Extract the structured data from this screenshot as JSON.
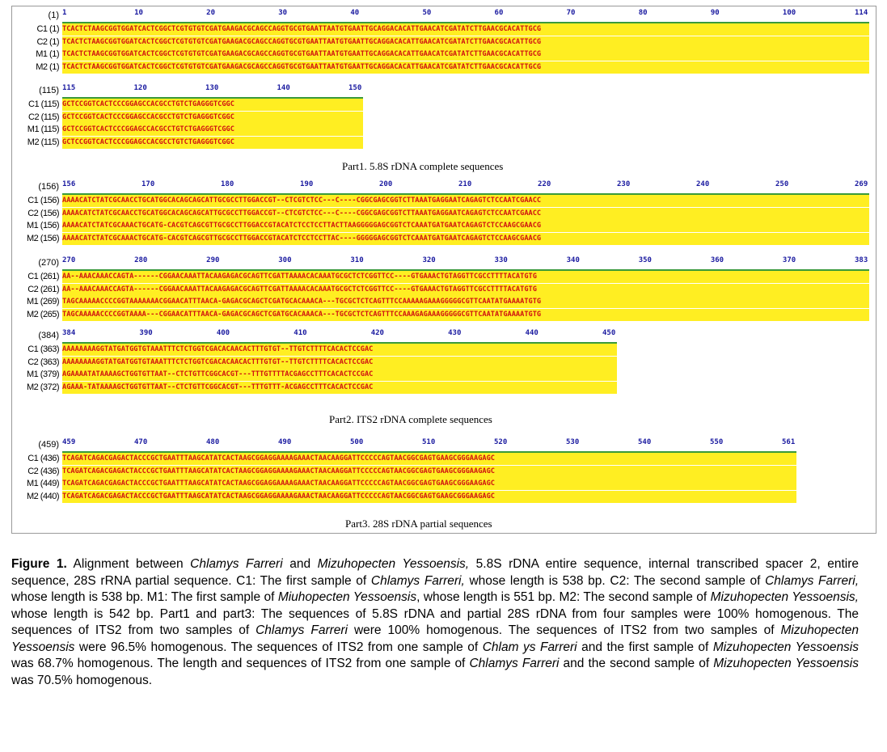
{
  "part1": {
    "ruler_label": "(1)",
    "ruler_numbers": [
      "1",
      "10",
      "20",
      "30",
      "40",
      "50",
      "60",
      "70",
      "80",
      "90",
      "100",
      "114"
    ],
    "rows": [
      {
        "label": "C1",
        "pos": "(1)",
        "seq": "TCACTCTAAGCGGTGGATCACTCGGCTCGTGTGTCGATGAAGACGCAGCCAGGTGCGTGAATTAATGTGAATTGCAGGACACATTGAACATCGATATCTTGAACGCACATTGCG"
      },
      {
        "label": "C2",
        "pos": "(1)",
        "seq": "TCACTCTAAGCGGTGGATCACTCGGCTCGTGTGTCGATGAAGACGCAGCCAGGTGCGTGAATTAATGTGAATTGCAGGACACATTGAACATCGATATCTTGAACGCACATTGCG"
      },
      {
        "label": "M1",
        "pos": "(1)",
        "seq": "TCACTCTAAGCGGTGGATCACTCGGCTCGTGTGTCGATGAAGACGCAGCCAGGTGCGTGAATTAATGTGAATTGCAGGACACATTGAACATCGATATCTTGAACGCACATTGCG"
      },
      {
        "label": "M2",
        "pos": "(1)",
        "seq": "TCACTCTAAGCGGTGGATCACTCGGCTCGTGTGTCGATGAAGACGCAGCCAGGTGCGTGAATTAATGTGAATTGCAGGACACATTGAACATCGATATCTTGAACGCACATTGCG"
      }
    ]
  },
  "part1b": {
    "ruler_label": "(115)",
    "ruler_numbers": [
      "115",
      "120",
      "130",
      "140",
      "150"
    ],
    "rows": [
      {
        "label": "C1",
        "pos": "(115)",
        "seq": "GCTCCGGTCACTCCCGGAGCCACGCCTGTCTGAGGGTCGGC"
      },
      {
        "label": "C2",
        "pos": "(115)",
        "seq": "GCTCCGGTCACTCCCGGAGCCACGCCTGTCTGAGGGTCGGC"
      },
      {
        "label": "M1",
        "pos": "(115)",
        "seq": "GCTCCGGTCACTCCCGGAGCCACGCCTGTCTGAGGGTCGGC"
      },
      {
        "label": "M2",
        "pos": "(115)",
        "seq": "GCTCCGGTCACTCCCGGAGCCACGCCTGTCTGAGGGTCGGC"
      }
    ],
    "title": "Part1. 5.8S rDNA complete sequences"
  },
  "part2a": {
    "ruler_label": "(156)",
    "ruler_numbers": [
      "156",
      "170",
      "180",
      "190",
      "200",
      "210",
      "220",
      "230",
      "240",
      "250",
      "269"
    ],
    "rows": [
      {
        "label": "C1",
        "pos": "(156)",
        "seq": "AAAACATCTATCGCAACCTGCATGGCACAGCAGCATTGCGCCTTGGACCGT--CTCGTCTCC---C----CGGCGAGCGGTCTTAAATGAGGAATCAGAGTCTCCAATCGAACC"
      },
      {
        "label": "C2",
        "pos": "(156)",
        "seq": "AAAACATCTATCGCAACCTGCATGGCACAGCAGCATTGCGCCTTGGACCGT--CTCGTCTCC---C----CGGCGAGCGGTCTTAAATGAGGAATCAGAGTCTCCAATCGAACC"
      },
      {
        "label": "M1",
        "pos": "(156)",
        "seq": "AAAACATCTATCGCAAACTGCATG-CACGTCAGCGTTGCGCCTTGGACCGTACATCTCCTCCTTACTTAAGGGGGAGCGGTCTCAAATGATGAATCAGAGTCTCCAAGCGAACG"
      },
      {
        "label": "M2",
        "pos": "(156)",
        "seq": "AAAACATCTATCGCAAACTGCATG-CACGTCAGCGTTGCGCCTTGGACCGTACATCTCCTCCTTAC----GGGGGAGCGGTCTCAAATGATGAATCAGAGTCTCCAAGCGAACG"
      }
    ]
  },
  "part2b": {
    "ruler_label": "(270)",
    "ruler_numbers": [
      "270",
      "280",
      "290",
      "300",
      "310",
      "320",
      "330",
      "340",
      "350",
      "360",
      "370",
      "383"
    ],
    "rows": [
      {
        "label": "C1",
        "pos": "(261)",
        "seq": "AA--AAACAAACCAGTA------CGGAACAAATTACAAGAGACGCAGTTCGATTAAAACACAAATGCGCTCTCGGTTCC----GTGAAACTGTAGGTTCGCCTTTTACATGTG"
      },
      {
        "label": "C2",
        "pos": "(261)",
        "seq": "AA--AAACAAACCAGTA------CGGAACAAATTACAAGAGACGCAGTTCGATTAAAACACAAATGCGCTCTCGGTTCC----GTGAAACTGTAGGTTCGCCTTTTACATGTG"
      },
      {
        "label": "M1",
        "pos": "(269)",
        "seq": "TAGCAAAAACCCCGGTAAAAAAACGGAACATTTAACA-GAGACGCAGCTCGATGCACAAACA---TGCGCTCTCAGTTTCCAAAAAGAAAGGGGGCGTTCAATATGAAAATGTG"
      },
      {
        "label": "M2",
        "pos": "(265)",
        "seq": "TAGCAAAAACCCCGGTAAAA---CGGAACATTTAACA-GAGACGCAGCTCGATGCACAAACA---TGCGCTCTCAGTTTCCAAAGAGAAAGGGGGCGTTCAATATGAAAATGTG"
      }
    ]
  },
  "part2c": {
    "ruler_label": "(384)",
    "ruler_numbers": [
      "384",
      "390",
      "400",
      "410",
      "420",
      "430",
      "440",
      "450"
    ],
    "rows": [
      {
        "label": "C1",
        "pos": "(363)",
        "seq": "AAAAAAAAGGTATGATGGTGTAAATTTCTCTGGTCGACACAACACTTTGTGT--TTGTCTTTTCACACTCCGAC"
      },
      {
        "label": "C2",
        "pos": "(363)",
        "seq": "AAAAAAAAGGTATGATGGTGTAAATTTCTCTGGTCGACACAACACTTTGTGT--TTGTCTTTTCACACTCCGAC"
      },
      {
        "label": "M1",
        "pos": "(379)",
        "seq": "AGAAAATATAAAAGCTGGTGTTAAT--CTCTGTTCGGCACGT---TTTGTTTTACGAGCCTTTCACACTCCGAC"
      },
      {
        "label": "M2",
        "pos": "(372)",
        "seq": "AGAAA-TATAAAAGCTGGTGTTAAT--CTCTGTTCGGCACGT---TTTGTTT-ACGAGCCTTTCACACTCCGAC"
      }
    ],
    "title": "Part2. ITS2 rDNA complete sequences"
  },
  "part3": {
    "ruler_label": "(459)",
    "ruler_numbers": [
      "459",
      "470",
      "480",
      "490",
      "500",
      "510",
      "520",
      "530",
      "540",
      "550",
      "561"
    ],
    "rows": [
      {
        "label": "C1",
        "pos": "(436)",
        "seq": "TCAGATCAGACGAGACTACCCGCTGAATTTAAGCATATCACTAAGCGGAGGAAAAGAAACTAACAAGGATTCCCCCAGTAACGGCGAGTGAAGCGGGAAGAGC"
      },
      {
        "label": "C2",
        "pos": "(436)",
        "seq": "TCAGATCAGACGAGACTACCCGCTGAATTTAAGCATATCACTAAGCGGAGGAAAAGAAACTAACAAGGATTCCCCCAGTAACGGCGAGTGAAGCGGGAAGAGC"
      },
      {
        "label": "M1",
        "pos": "(449)",
        "seq": "TCAGATCAGACGAGACTACCCGCTGAATTTAAGCATATCACTAAGCGGAGGAAAAGAAACTAACAAGGATTCCCCCAGTAACGGCGAGTGAAGCGGGAAGAGC"
      },
      {
        "label": "M2",
        "pos": "(440)",
        "seq": "TCAGATCAGACGAGACTACCCGCTGAATTTAAGCATATCACTAAGCGGAGGAAAAGAAACTAACAAGGATTCCCCCAGTAACGGCGAGTGAAGCGGGAAGAGC"
      }
    ],
    "title": "Part3. 28S rDNA partial sequences"
  },
  "colors": {
    "match_bg": "#ffee22",
    "match_fg": "#d01010",
    "ruler_line": "#3a9a3a",
    "ruler_text": "#1a1aa0"
  },
  "caption": {
    "label": "Figure 1.",
    "segments": [
      {
        "t": " Alignment between ",
        "i": false
      },
      {
        "t": "Chlamys Farreri",
        "i": true
      },
      {
        "t": " and ",
        "i": false
      },
      {
        "t": "Mizuhopecten Yessoensis,",
        "i": true
      },
      {
        "t": " 5.8S rDNA entire sequence, internal transcribed spacer 2, entire sequence, 28S rRNA partial sequence. C1: The first sample of ",
        "i": false
      },
      {
        "t": "Chlamys Farreri,",
        "i": true
      },
      {
        "t": " whose length is 538 bp. C2: The second sample of ",
        "i": false
      },
      {
        "t": "Chlamys Farreri,",
        "i": true
      },
      {
        "t": " whose length is 538 bp. M1: The first sample of ",
        "i": false
      },
      {
        "t": "Miuhopecten Yessoensis",
        "i": true
      },
      {
        "t": ", whose length is 551 bp. M2: The second sample of ",
        "i": false
      },
      {
        "t": "Mizuhopecten Yessoensis,",
        "i": true
      },
      {
        "t": " whose length is 542 bp. Part1 and part3: The sequences of 5.8S rDNA and partial 28S rDNA from four samples were 100% homogenous. The sequences of ITS2 from two samples of ",
        "i": false
      },
      {
        "t": "Chlamys Farreri",
        "i": true
      },
      {
        "t": " were 100% homogenous. The sequences of ITS2 from two samples of ",
        "i": false
      },
      {
        "t": "Mizuhopecten Yessoensis",
        "i": true
      },
      {
        "t": " were 96.5% homogenous. The sequences of ITS2 from one sample of ",
        "i": false
      },
      {
        "t": "Chlam ys Farreri",
        "i": true
      },
      {
        "t": " and the first sample of ",
        "i": false
      },
      {
        "t": "Mizuhopecten Yessoensis",
        "i": true
      },
      {
        "t": " was 68.7% homogenous. The length and sequences of ITS2 from one sample of ",
        "i": false
      },
      {
        "t": "Chlamys Farreri",
        "i": true
      },
      {
        "t": " and the second sample of ",
        "i": false
      },
      {
        "t": "Mizuhopecten Yessoensis",
        "i": true
      },
      {
        "t": " was 70.5% homogenous.",
        "i": false
      }
    ]
  }
}
